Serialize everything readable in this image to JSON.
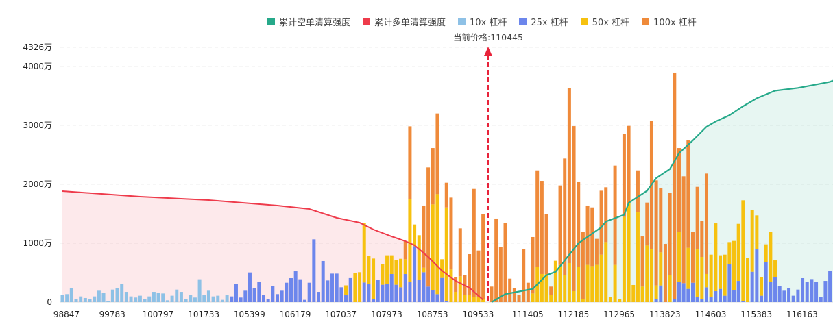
{
  "chart_data": {
    "type": "bar",
    "title": "",
    "current_price_label": "当前价格:110445",
    "current_price": 110445,
    "ylim": [
      0,
      4326
    ],
    "y_ticks": [
      {
        "value": 0,
        "label": "0"
      },
      {
        "value": 1000,
        "label": "1000万"
      },
      {
        "value": 2000,
        "label": "2000万"
      },
      {
        "value": 3000,
        "label": "3000万"
      },
      {
        "value": 4000,
        "label": "4000万"
      },
      {
        "value": 4326,
        "label": "4326万"
      }
    ],
    "x_tick_every": 10,
    "x_tick_labels": [
      "98847",
      "99783",
      "100797",
      "101733",
      "105399",
      "106179",
      "107037",
      "107973",
      "108753",
      "109533",
      "111405",
      "112185",
      "112965",
      "113823",
      "114603",
      "115383",
      "116163"
    ],
    "legend": [
      {
        "name": "累计空单清算强度",
        "color": "#26a98a"
      },
      {
        "name": "累计多单清算强度",
        "color": "#ee3b4b"
      },
      {
        "name": "10x 杠杆",
        "color": "#8ec1e6"
      },
      {
        "name": "25x 杠杆",
        "color": "#6c86ec"
      },
      {
        "name": "50x 杠杆",
        "color": "#f6c10f"
      },
      {
        "name": "100x 杠杆",
        "color": "#ef8a3a"
      }
    ],
    "stack_order": [
      "10x 杠杆",
      "25x 杠杆",
      "50x 杠杆",
      "100x 杠杆"
    ],
    "bars_below_price": [
      [
        117,
        0,
        0,
        0
      ],
      [
        136,
        0,
        0,
        0
      ],
      [
        233,
        0,
        0,
        0
      ],
      [
        58,
        0,
        0,
        0
      ],
      [
        97,
        0,
        0,
        0
      ],
      [
        70,
        0,
        0,
        0
      ],
      [
        47,
        0,
        0,
        0
      ],
      [
        97,
        0,
        0,
        0
      ],
      [
        194,
        0,
        0,
        0
      ],
      [
        155,
        0,
        0,
        0
      ],
      [
        19,
        0,
        0,
        0
      ],
      [
        213,
        0,
        0,
        0
      ],
      [
        240,
        0,
        0,
        0
      ],
      [
        310,
        0,
        0,
        0
      ],
      [
        174,
        0,
        0,
        0
      ],
      [
        97,
        0,
        0,
        0
      ],
      [
        78,
        0,
        0,
        0
      ],
      [
        109,
        0,
        0,
        0
      ],
      [
        58,
        0,
        0,
        0
      ],
      [
        97,
        0,
        0,
        0
      ],
      [
        174,
        0,
        0,
        0
      ],
      [
        155,
        0,
        0,
        0
      ],
      [
        147,
        0,
        0,
        0
      ],
      [
        31,
        0,
        0,
        0
      ],
      [
        109,
        0,
        0,
        0
      ],
      [
        213,
        0,
        0,
        0
      ],
      [
        174,
        0,
        0,
        0
      ],
      [
        58,
        0,
        0,
        0
      ],
      [
        116,
        0,
        0,
        0
      ],
      [
        78,
        0,
        0,
        0
      ],
      [
        388,
        0,
        0,
        0
      ],
      [
        116,
        0,
        0,
        0
      ],
      [
        194,
        0,
        0,
        0
      ],
      [
        97,
        0,
        0,
        0
      ],
      [
        109,
        0,
        0,
        0
      ],
      [
        39,
        0,
        0,
        0
      ],
      [
        116,
        0,
        0,
        0
      ],
      [
        0,
        97,
        0,
        0
      ],
      [
        0,
        310,
        0,
        0
      ],
      [
        0,
        78,
        0,
        0
      ],
      [
        0,
        194,
        0,
        0
      ],
      [
        0,
        504,
        0,
        0
      ],
      [
        0,
        233,
        0,
        0
      ],
      [
        0,
        349,
        0,
        0
      ],
      [
        0,
        116,
        0,
        0
      ],
      [
        0,
        58,
        0,
        0
      ],
      [
        0,
        271,
        0,
        0
      ],
      [
        0,
        136,
        0,
        0
      ],
      [
        0,
        194,
        0,
        0
      ],
      [
        0,
        329,
        0,
        0
      ],
      [
        0,
        407,
        0,
        0
      ],
      [
        0,
        523,
        0,
        0
      ],
      [
        0,
        388,
        0,
        0
      ],
      [
        0,
        39,
        0,
        0
      ],
      [
        0,
        329,
        0,
        0
      ],
      [
        0,
        1066,
        0,
        0
      ],
      [
        0,
        174,
        0,
        0
      ],
      [
        0,
        698,
        0,
        0
      ],
      [
        0,
        368,
        0,
        0
      ],
      [
        0,
        484,
        0,
        0
      ],
      [
        0,
        484,
        0,
        0
      ],
      [
        0,
        252,
        0,
        0
      ],
      [
        0,
        120,
        165,
        0
      ],
      [
        0,
        408,
        0,
        0
      ],
      [
        0,
        0,
        500,
        0
      ],
      [
        0,
        0,
        508,
        0
      ],
      [
        0,
        333,
        1016,
        0
      ],
      [
        0,
        310,
        477,
        0
      ],
      [
        0,
        50,
        690,
        0
      ],
      [
        0,
        372,
        0,
        0
      ],
      [
        0,
        295,
        345,
        0
      ],
      [
        0,
        310,
        485,
        0
      ],
      [
        0,
        477,
        318,
        0
      ],
      [
        0,
        295,
        415,
        0
      ],
      [
        0,
        252,
        484,
        0
      ],
      [
        0,
        477,
        252,
        310
      ],
      [
        0,
        341,
        1415,
        1228
      ],
      [
        0,
        950,
        368,
        0
      ],
      [
        0,
        380,
        756,
        0
      ],
      [
        0,
        508,
        77,
        1055
      ],
      [
        0,
        264,
        0,
        2023
      ],
      [
        0,
        198,
        1461,
        957
      ],
      [
        0,
        136,
        1697,
        1369
      ],
      [
        0,
        411,
        318,
        0
      ],
      [
        0,
        23,
        1585,
        419
      ],
      [
        0,
        0,
        554,
        1221
      ],
      [
        0,
        0,
        174,
        245
      ],
      [
        0,
        0,
        438,
        814
      ],
      [
        0,
        0,
        128,
        329
      ],
      [
        0,
        0,
        128,
        686
      ],
      [
        0,
        0,
        89,
        1833
      ],
      [
        0,
        0,
        89,
        787
      ],
      [
        0,
        0,
        50,
        1446
      ]
    ],
    "bars_above_price": [
      [
        0,
        0,
        0,
        264
      ],
      [
        0,
        0,
        0,
        1419
      ],
      [
        0,
        0,
        0,
        934
      ],
      [
        0,
        0,
        0,
        1349
      ],
      [
        0,
        0,
        0,
        399
      ],
      [
        0,
        0,
        0,
        244
      ],
      [
        0,
        0,
        0,
        128
      ],
      [
        0,
        0,
        0,
        903
      ],
      [
        0,
        0,
        0,
        329
      ],
      [
        0,
        0,
        147,
        958
      ],
      [
        0,
        0,
        593,
        1643
      ],
      [
        0,
        0,
        477,
        1581
      ],
      [
        0,
        0,
        477,
        1015
      ],
      [
        0,
        0,
        128,
        136
      ],
      [
        0,
        0,
        702,
        0
      ],
      [
        0,
        0,
        632,
        1349
      ],
      [
        0,
        0,
        457,
        1981
      ],
      [
        0,
        0,
        663,
        2973
      ],
      [
        0,
        0,
        186,
        2802
      ],
      [
        0,
        0,
        593,
        1454
      ],
      [
        0,
        0,
        50,
        1144
      ],
      [
        0,
        0,
        632,
        1008
      ],
      [
        0,
        0,
        612,
        996
      ],
      [
        0,
        0,
        632,
        442
      ],
      [
        0,
        0,
        806,
        1085
      ],
      [
        0,
        0,
        1019,
        931
      ],
      [
        0,
        0,
        89,
        0
      ],
      [
        0,
        0,
        632,
        1686
      ],
      [
        0,
        0,
        50,
        0
      ],
      [
        0,
        0,
        1446,
        1411
      ],
      [
        0,
        0,
        1678,
        1314
      ],
      [
        0,
        0,
        291,
        0
      ],
      [
        0,
        0,
        1523,
        713
      ],
      [
        0,
        0,
        264,
        852
      ],
      [
        0,
        0,
        961,
        729
      ],
      [
        0,
        0,
        895,
        2179
      ],
      [
        0,
        58,
        225,
        1783
      ],
      [
        0,
        283,
        562,
        1093
      ],
      [
        0,
        0,
        0,
        988
      ],
      [
        0,
        0,
        457,
        1396
      ],
      [
        0,
        50,
        0,
        3846
      ],
      [
        0,
        341,
        853,
        1422
      ],
      [
        0,
        322,
        0,
        1814
      ],
      [
        0,
        225,
        697,
        1822
      ],
      [
        0,
        329,
        0,
        865
      ],
      [
        0,
        89,
        806,
        1062
      ],
      [
        0,
        50,
        717,
        609
      ],
      [
        0,
        252,
        225,
        1705
      ],
      [
        0,
        89,
        717,
        0
      ],
      [
        0,
        186,
        1151,
        0
      ],
      [
        0,
        225,
        570,
        0
      ],
      [
        0,
        109,
        697,
        0
      ],
      [
        0,
        651,
        368,
        0
      ],
      [
        0,
        205,
        834,
        0
      ],
      [
        0,
        360,
        969,
        0
      ],
      [
        0,
        19,
        1710,
        0
      ],
      [
        0,
        0,
        748,
        0
      ],
      [
        0,
        515,
        1055,
        0
      ],
      [
        0,
        895,
        578,
        0
      ],
      [
        0,
        109,
        310,
        0
      ],
      [
        0,
        678,
        303,
        0
      ],
      [
        0,
        341,
        853,
        0
      ],
      [
        0,
        419,
        290,
        0
      ],
      [
        0,
        271,
        0,
        0
      ],
      [
        0,
        194,
        0,
        0
      ],
      [
        0,
        244,
        0,
        0
      ],
      [
        0,
        109,
        0,
        0
      ],
      [
        0,
        213,
        0,
        0
      ],
      [
        0,
        407,
        0,
        0
      ],
      [
        0,
        341,
        0,
        0
      ],
      [
        0,
        391,
        0,
        0
      ],
      [
        0,
        341,
        0,
        0
      ],
      [
        0,
        89,
        0,
        0
      ],
      [
        0,
        360,
        0,
        0
      ],
      [
        0,
        535,
        0,
        0
      ]
    ],
    "cumulative_long_points": [
      [
        1,
        1884
      ],
      [
        18,
        1791
      ],
      [
        33,
        1733
      ],
      [
        48,
        1640
      ],
      [
        55,
        1581
      ],
      [
        61,
        1430
      ],
      [
        66,
        1349
      ],
      [
        69,
        1233
      ],
      [
        73,
        1116
      ],
      [
        76,
        1035
      ],
      [
        78,
        965
      ],
      [
        81,
        767
      ],
      [
        84,
        535
      ],
      [
        87,
        360
      ],
      [
        90,
        244
      ],
      [
        93,
        40
      ]
    ],
    "cumulative_short_points": [
      [
        1,
        0
      ],
      [
        4,
        136
      ],
      [
        10,
        225
      ],
      [
        13,
        457
      ],
      [
        15,
        515
      ],
      [
        20,
        1000
      ],
      [
        25,
        1271
      ],
      [
        26,
        1368
      ],
      [
        30,
        1484
      ],
      [
        31,
        1686
      ],
      [
        35,
        1891
      ],
      [
        37,
        2105
      ],
      [
        40,
        2260
      ],
      [
        42,
        2531
      ],
      [
        45,
        2744
      ],
      [
        48,
        2977
      ],
      [
        50,
        3066
      ],
      [
        53,
        3171
      ],
      [
        56,
        3326
      ],
      [
        59,
        3461
      ],
      [
        63,
        3589
      ],
      [
        68,
        3636
      ],
      [
        72,
        3694
      ],
      [
        75,
        3740
      ]
    ]
  }
}
